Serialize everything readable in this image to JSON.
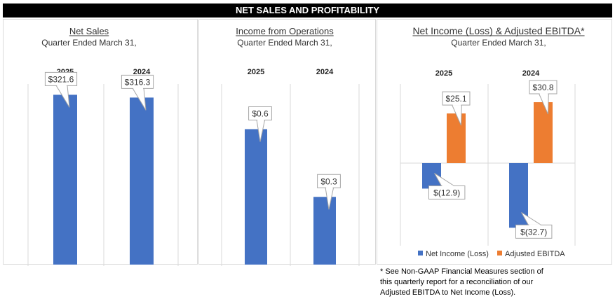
{
  "banner": {
    "title": "NET SALES AND PROFITABILITY"
  },
  "colors": {
    "blue": "#4472C4",
    "orange": "#ED7D31",
    "grid": "#d9d9d9"
  },
  "chart_data": [
    {
      "type": "bar",
      "title": "Net Sales",
      "subtitle": "Quarter Ended March 31,",
      "categories": [
        "2025",
        "2024"
      ],
      "series": [
        {
          "values": [
            321.6,
            316.3
          ]
        }
      ],
      "data_labels": [
        "$321.6",
        "$316.3"
      ],
      "ylim": [
        0,
        342
      ],
      "grid": false
    },
    {
      "type": "bar",
      "title": "Income from Operations",
      "subtitle": "Quarter Ended March 31,",
      "categories": [
        "2025",
        "2024"
      ],
      "series": [
        {
          "values": [
            0.6,
            0.3
          ]
        }
      ],
      "data_labels": [
        "$0.6",
        "$0.3"
      ],
      "ylim": [
        0,
        0.8
      ],
      "grid": false
    },
    {
      "type": "bar",
      "title": "Net Income (Loss) & Adjusted EBITDA*",
      "subtitle": "Quarter Ended March 31,",
      "categories": [
        "2025",
        "2024"
      ],
      "series": [
        {
          "name": "Net Income (Loss)",
          "values": [
            -12.9,
            -32.7
          ],
          "data_labels": [
            "$(12.9)",
            "$(32.7)"
          ]
        },
        {
          "name": "Adjusted EBITDA",
          "values": [
            25.1,
            30.8
          ],
          "data_labels": [
            "$25.1",
            "$30.8"
          ]
        }
      ],
      "ylim": [
        -40,
        40
      ],
      "legend": "bottom",
      "grid": false
    }
  ],
  "footnote": {
    "lines": [
      "* See Non-GAAP Financial Measures section of",
      "this quarterly report for a reconciliation of our",
      "Adjusted EBITDA to Net Income (Loss)."
    ]
  }
}
